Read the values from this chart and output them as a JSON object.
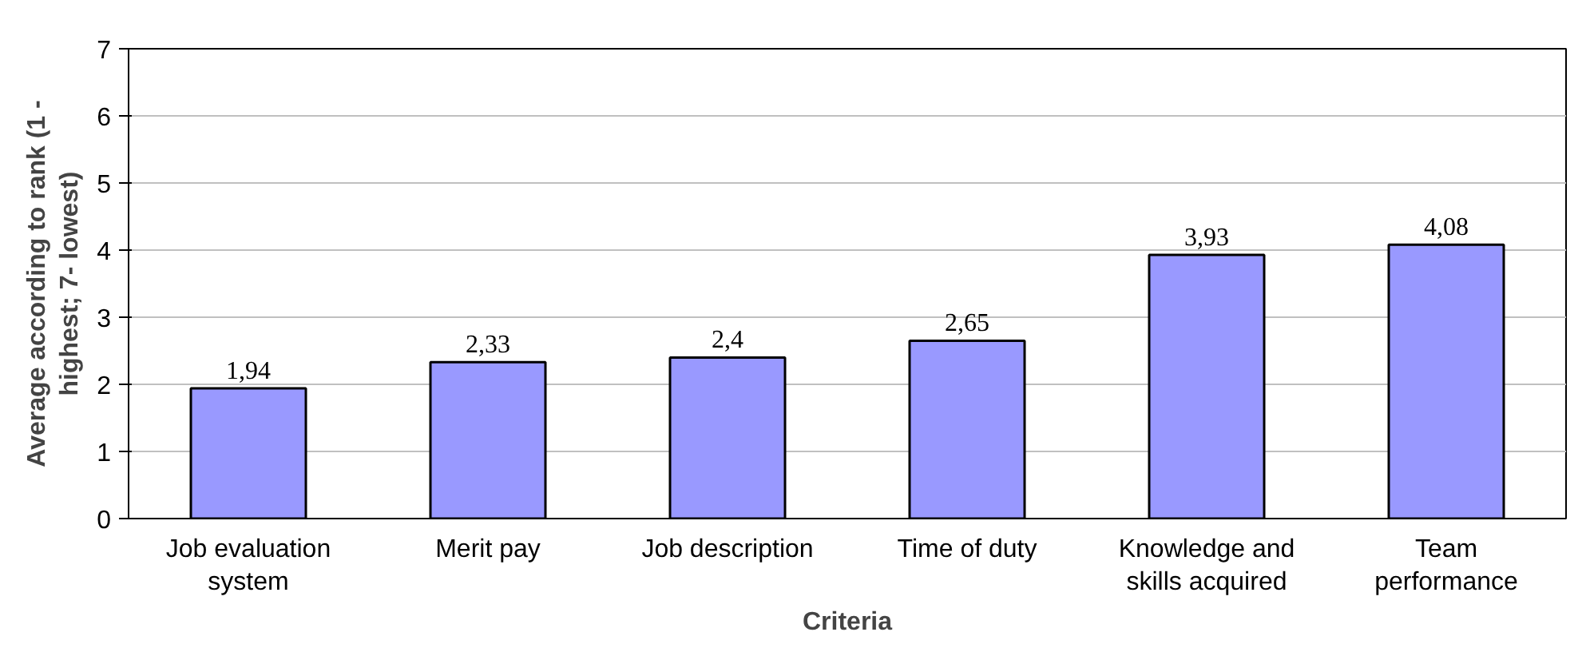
{
  "chart_data": {
    "type": "bar",
    "xlabel": "Criteria",
    "ylabel": "Average according to rank (1 - highest; 7- lowest)",
    "categories": [
      "Job evaluation system",
      "Merit pay",
      "Job description",
      "Time of duty",
      "Knowledge and skills acquired",
      "Team performance"
    ],
    "values": [
      1.94,
      2.33,
      2.4,
      2.65,
      3.93,
      4.08
    ],
    "value_labels": [
      "1,94",
      "2,33",
      "2,4",
      "2,65",
      "3,93",
      "4,08"
    ],
    "color": "#9999ff",
    "ylim": [
      0,
      7
    ],
    "yticks": [
      0,
      1,
      2,
      3,
      4,
      5,
      6,
      7
    ],
    "grid": "y"
  }
}
